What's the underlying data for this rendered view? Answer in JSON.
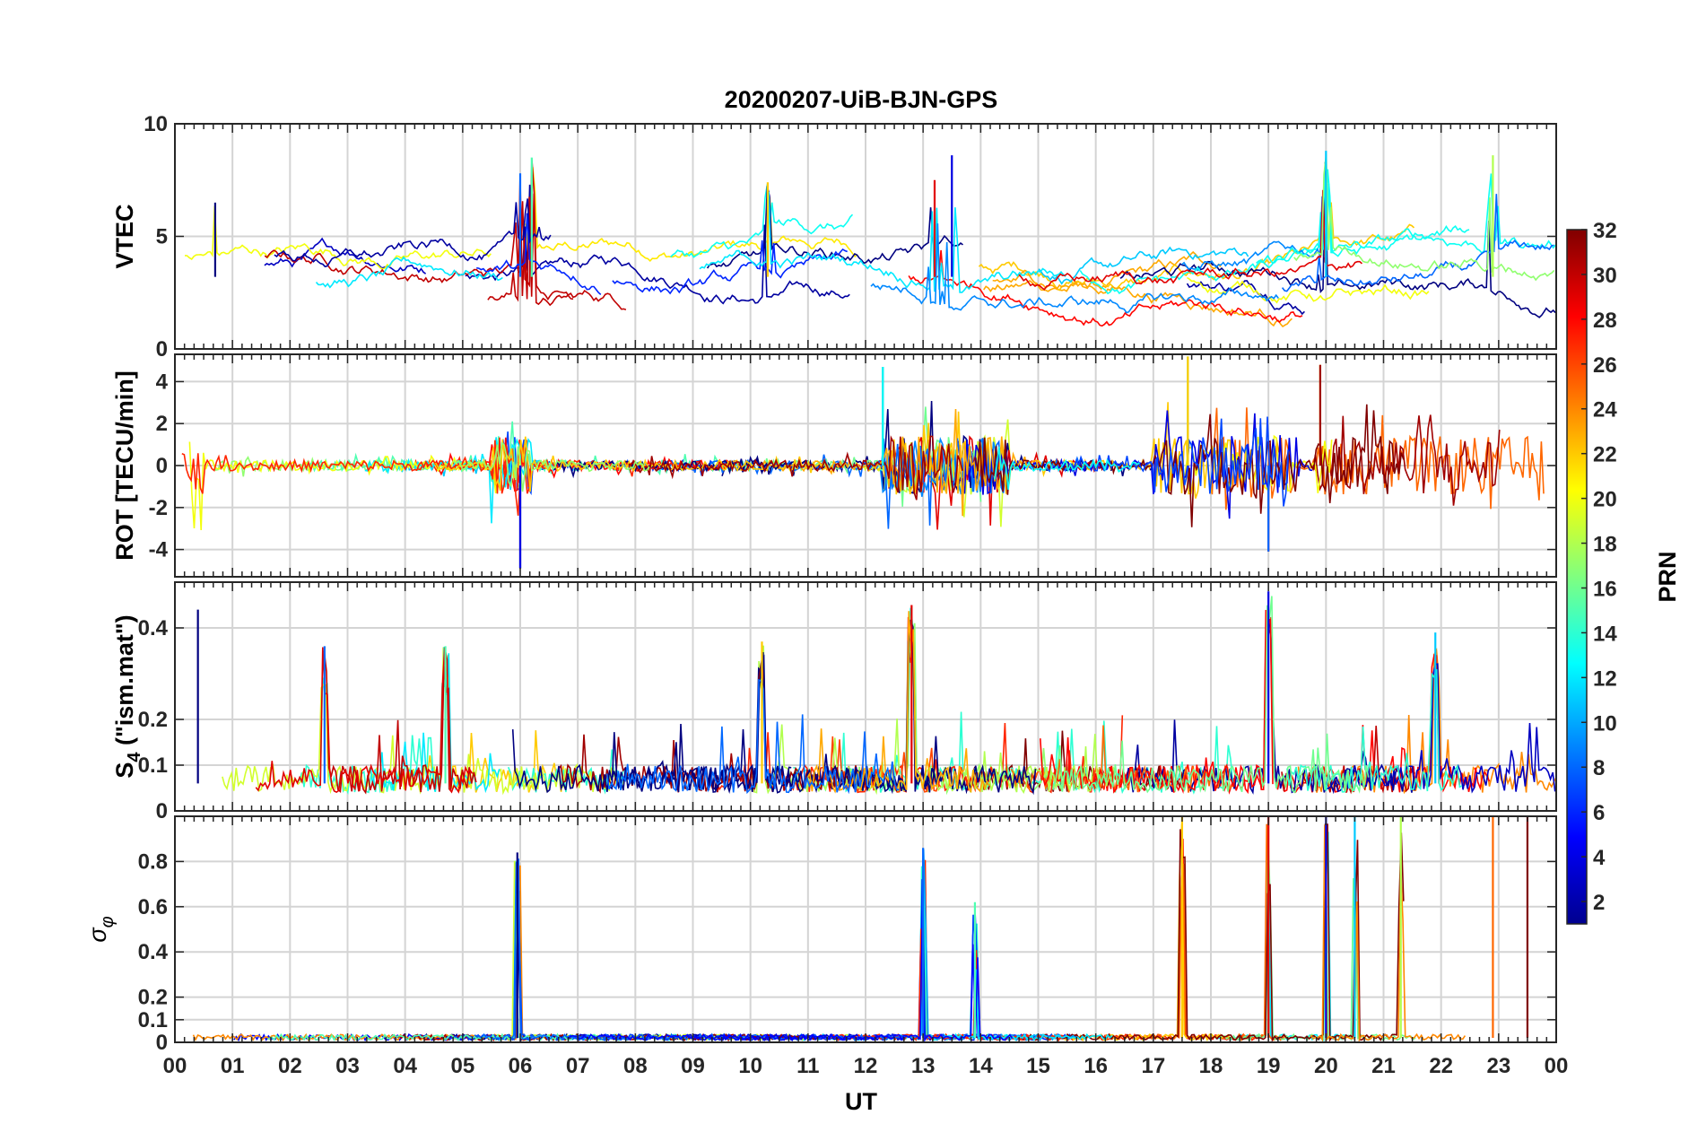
{
  "figure": {
    "title": "20200207-UiB-BJN-GPS",
    "xlabel": "UT",
    "x_tick_labels": [
      "00",
      "01",
      "02",
      "03",
      "04",
      "05",
      "06",
      "07",
      "08",
      "09",
      "10",
      "11",
      "12",
      "13",
      "14",
      "15",
      "16",
      "17",
      "18",
      "19",
      "20",
      "21",
      "22",
      "23",
      "00"
    ]
  },
  "colorbar": {
    "label": "PRN",
    "min": 1,
    "max": 32,
    "tick_labels": [
      "2",
      "4",
      "6",
      "8",
      "10",
      "12",
      "14",
      "16",
      "18",
      "20",
      "22",
      "24",
      "26",
      "28",
      "30",
      "32"
    ],
    "colormap": "jet"
  },
  "chart_data": [
    {
      "type": "line",
      "panel": "vtec",
      "ylabel": "VTEC",
      "ylim": [
        0,
        10
      ],
      "y_tick_labels": [
        "0",
        "5",
        "10"
      ],
      "xlim": [
        0,
        24
      ],
      "series_profile": {
        "description": "per-PRN VTEC arcs, typical values 2-6 TECU",
        "baseline_tecu": 3.2,
        "peaks": [
          {
            "ut": 0.7,
            "value": 6.5
          },
          {
            "ut": 6.0,
            "value": 7.8
          },
          {
            "ut": 6.2,
            "value": 8.5
          },
          {
            "ut": 10.3,
            "value": 7.4
          },
          {
            "ut": 13.2,
            "value": 7.5
          },
          {
            "ut": 13.5,
            "value": 8.6
          },
          {
            "ut": 20.0,
            "value": 8.8
          },
          {
            "ut": 22.9,
            "value": 8.6
          }
        ]
      }
    },
    {
      "type": "line",
      "panel": "rot",
      "ylabel": "ROT [TECU/min]",
      "ylim": [
        -5.3,
        5.3
      ],
      "y_tick_labels": [
        "-4",
        "-2",
        "0",
        "2",
        "4"
      ],
      "xlim": [
        0,
        24
      ],
      "series_profile": {
        "description": "rate of TEC, noise around 0 with bursts",
        "active_windows_ut": [
          [
            0,
            0.5
          ],
          [
            5.5,
            6.2
          ],
          [
            12.3,
            14.5
          ],
          [
            17.0,
            19.5
          ],
          [
            19.8,
            24
          ]
        ],
        "extremes": [
          {
            "ut": 6.0,
            "value": -4.9
          },
          {
            "ut": 12.3,
            "value": 4.7
          },
          {
            "ut": 17.6,
            "value": 5.2
          },
          {
            "ut": 19.9,
            "value": 4.8
          },
          {
            "ut": 19.0,
            "value": -4.1
          }
        ]
      }
    },
    {
      "type": "line",
      "panel": "s4",
      "ylabel": "S4 (\"ism.mat\")",
      "ylabel_main": "S",
      "ylabel_sub": "4",
      "ylabel_rest": " (\"ism.mat\")",
      "ylim": [
        0,
        0.5
      ],
      "y_tick_labels": [
        "0",
        "0.1",
        "0.2",
        "0.4"
      ],
      "xlim": [
        0,
        24
      ],
      "series_profile": {
        "description": "amplitude scintillation index per PRN, background 0.04-0.12",
        "spikes": [
          {
            "ut": 0.4,
            "value": 0.44
          },
          {
            "ut": 2.6,
            "value": 0.36
          },
          {
            "ut": 4.7,
            "value": 0.36
          },
          {
            "ut": 10.2,
            "value": 0.37
          },
          {
            "ut": 12.8,
            "value": 0.45
          },
          {
            "ut": 19.0,
            "value": 0.48
          },
          {
            "ut": 21.9,
            "value": 0.39
          }
        ]
      }
    },
    {
      "type": "line",
      "panel": "sigma_phi",
      "ylabel": "σφ",
      "ylabel_main": "σ",
      "ylabel_sub": "φ",
      "ylim": [
        0,
        1
      ],
      "y_tick_labels": [
        "0",
        "0.1",
        "0.2",
        "0.4",
        "0.6",
        "0.8"
      ],
      "xlim": [
        0,
        24
      ],
      "series_profile": {
        "description": "phase scintillation index per PRN, background ~0.02",
        "spikes": [
          {
            "ut": 5.95,
            "value": 0.84
          },
          {
            "ut": 13.0,
            "value": 0.86
          },
          {
            "ut": 13.9,
            "value": 0.62
          },
          {
            "ut": 17.5,
            "value": 1.0
          },
          {
            "ut": 19.0,
            "value": 1.0
          },
          {
            "ut": 20.0,
            "value": 1.0
          },
          {
            "ut": 20.5,
            "value": 1.0
          },
          {
            "ut": 21.3,
            "value": 1.0
          },
          {
            "ut": 22.9,
            "value": 1.0
          },
          {
            "ut": 23.5,
            "value": 1.0
          }
        ]
      }
    }
  ]
}
